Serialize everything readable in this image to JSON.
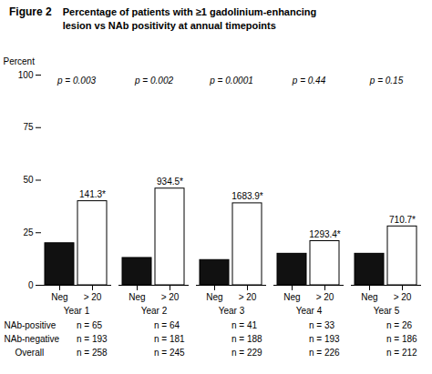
{
  "chart_data": {
    "type": "bar",
    "title": "Figure 2",
    "subtitle": "Percentage of patients with ≥1 gadolinium-enhancing\nlesion vs NAb positivity at annual timepoints",
    "categories": [
      "Year 1",
      "Year 2",
      "Year 3",
      "Year 4",
      "Year 5"
    ],
    "series": [
      {
        "name": "Neg",
        "color": "#111111",
        "values": [
          20,
          13,
          12,
          15,
          15
        ]
      },
      {
        "name": "> 20",
        "color": "#ffffff",
        "values": [
          40,
          46,
          39,
          21,
          28
        ]
      }
    ],
    "annotations": [
      {
        "category": "Year 1",
        "series": "> 20",
        "text": "141.3*"
      },
      {
        "category": "Year 2",
        "series": "> 20",
        "text": "934.5*"
      },
      {
        "category": "Year 3",
        "series": "> 20",
        "text": "1683.9*"
      },
      {
        "category": "Year 4",
        "series": "> 20",
        "text": "1293.4*"
      },
      {
        "category": "Year 5",
        "series": "> 20",
        "text": "710.7*"
      },
      {
        "category": "Year 1",
        "text": "p = 0.003"
      },
      {
        "category": "Year 2",
        "text": "p = 0.002"
      },
      {
        "category": "Year 3",
        "text": "p = 0.0001"
      },
      {
        "category": "Year 4",
        "text": "p = 0.44"
      },
      {
        "category": "Year 5",
        "text": "p = 0.15"
      }
    ],
    "table": {
      "rows": [
        {
          "label": "NAb-positive",
          "values": [
            "n = 65",
            "n = 64",
            "n = 41",
            "n = 33",
            "n = 26"
          ]
        },
        {
          "label": "NAb-negative",
          "values": [
            "n = 193",
            "n = 181",
            "n = 188",
            "n = 193",
            "n = 186"
          ]
        },
        {
          "label": "Overall",
          "values": [
            "n = 258",
            "n = 245",
            "n = 229",
            "n = 226",
            "n = 212"
          ]
        }
      ]
    },
    "ylabel": "Percent",
    "ylim": [
      0,
      100
    ],
    "yticks": [
      0,
      25,
      50,
      75,
      100
    ],
    "grid": false
  }
}
